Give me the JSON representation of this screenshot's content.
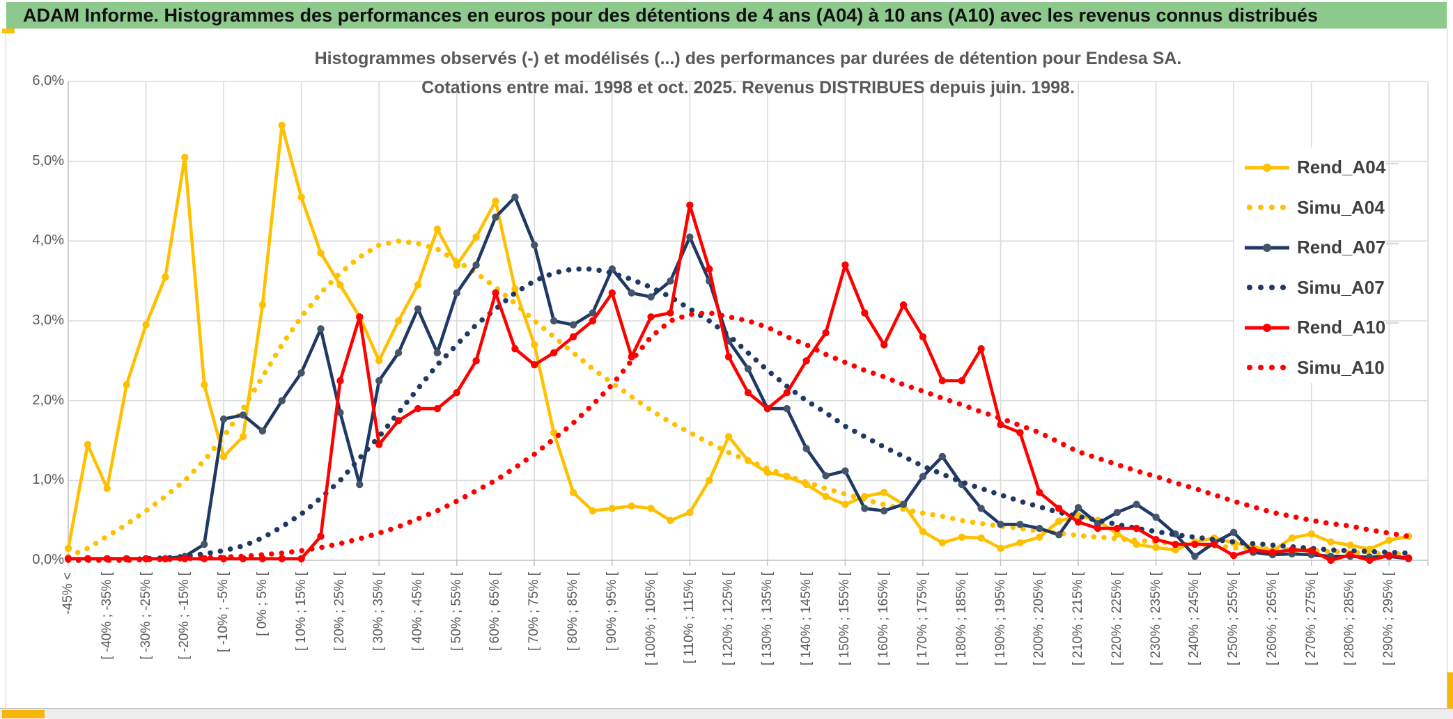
{
  "header": {
    "title": "ADAM Informe. Histogrammes des performances en euros pour des détentions de 4 ans (A04) à 10 ans (A10) avec les revenus connus distribués",
    "background_color": "#8DC88D",
    "accent_color": "#FFC000"
  },
  "chart": {
    "title_line1": "Histogrammes observés (-) et modélisés (...) des performances par durées de détention pour Endesa SA.",
    "title_line2": "Cotations entre mai. 1998 et oct. 2025. Revenus DISTRIBUES depuis juin. 1998.",
    "y_tick_labels": [
      "6,0%",
      "5,0%",
      "4,0%",
      "3,0%",
      "2,0%",
      "1,0%",
      "0,0%"
    ],
    "grid_color": "#DBDBDB",
    "axis_color": "#BFBFBF",
    "text_color": "#595959"
  },
  "chart_data": {
    "type": "line",
    "title": "Histogrammes observés (-) et modélisés (...) des performances par durées de détention pour Endesa SA. Cotations entre mai. 1998 et oct. 2025. Revenus DISTRIBUES depuis juin. 1998.",
    "ylabel": "",
    "xlabel": "",
    "ylim": [
      0,
      6
    ],
    "y_unit": "percent",
    "grid": true,
    "legend_position": "right",
    "bin_width_percent": 5,
    "x_tick_labels": [
      "-45% <",
      "[ -40% ; -35% [",
      "[ -30% ; -25% [",
      "[ -20% ; -15% [",
      "[ -10% ; -5% [",
      "[ 0% ; 5% [",
      "[ 10% ; 15% [",
      "[ 20% ; 25% [",
      "[ 30% ; 35% [",
      "[ 40% ; 45% [",
      "[ 50% ; 55% [",
      "[ 60% ; 65% [",
      "[ 70% ; 75% [",
      "[ 80% ; 85% [",
      "[ 90% ; 95% [",
      "[ 100% ; 105% [",
      "[ 110% ; 115% [",
      "[ 120% ; 125% [",
      "[ 130% ; 135% [",
      "[ 140% ; 145% [",
      "[ 150% ; 155% [",
      "[ 160% ; 165% [",
      "[ 170% ; 175% [",
      "[ 180% ; 185% [",
      "[ 190% ; 195% [",
      "[ 200% ; 205% [",
      "[ 210% ; 215% [",
      "[ 220% ; 225% [",
      "[ 230% ; 235% [",
      "[ 240% ; 245% [",
      "[ 250% ; 255% [",
      "[ 260% ; 265% [",
      "[ 270% ; 275% [",
      "[ 280% ; 285% [",
      "[ 290% ; 295% ["
    ],
    "labels_every_n_bins": 2,
    "series": [
      {
        "name": "Rend_A04",
        "style": "solid",
        "color": "#FFC000",
        "marker_color": "#FFC000",
        "values": [
          0.15,
          1.45,
          0.9,
          2.2,
          2.95,
          3.55,
          5.05,
          2.2,
          1.3,
          1.55,
          3.2,
          5.45,
          4.55,
          3.85,
          3.45,
          3.05,
          2.5,
          3.0,
          3.45,
          4.15,
          3.7,
          4.05,
          4.5,
          3.4,
          2.7,
          1.6,
          0.85,
          0.62,
          0.65,
          0.68,
          0.65,
          0.5,
          0.6,
          1.0,
          1.55,
          1.25,
          1.1,
          1.05,
          0.95,
          0.8,
          0.7,
          0.8,
          0.85,
          0.7,
          0.36,
          0.22,
          0.29,
          0.28,
          0.15,
          0.22,
          0.29,
          0.49,
          0.56,
          0.5,
          0.33,
          0.2,
          0.16,
          0.13,
          0.23,
          0.28,
          0.22,
          0.17,
          0.12,
          0.28,
          0.33,
          0.23,
          0.19,
          0.14,
          0.25,
          0.3
        ]
      },
      {
        "name": "Simu_A04",
        "style": "dotted",
        "color": "#FFC000",
        "values": [
          0.05,
          0.15,
          0.3,
          0.45,
          0.62,
          0.8,
          1.0,
          1.25,
          1.55,
          1.9,
          2.3,
          2.7,
          3.05,
          3.35,
          3.6,
          3.8,
          3.95,
          4.0,
          3.97,
          3.9,
          3.75,
          3.6,
          3.42,
          3.22,
          3.0,
          2.8,
          2.6,
          2.4,
          2.22,
          2.05,
          1.88,
          1.73,
          1.6,
          1.47,
          1.35,
          1.25,
          1.15,
          1.06,
          0.98,
          0.9,
          0.83,
          0.76,
          0.7,
          0.64,
          0.59,
          0.55,
          0.5,
          0.46,
          0.43,
          0.4,
          0.37,
          0.34,
          0.31,
          0.29,
          0.27,
          0.25,
          0.23,
          0.21,
          0.19,
          0.18,
          0.16,
          0.15,
          0.14,
          0.13,
          0.12,
          0.11,
          0.1,
          0.09,
          0.08,
          0.08
        ]
      },
      {
        "name": "Rend_A07",
        "style": "solid",
        "color": "#1F3864",
        "marker_color": "#44546A",
        "values": [
          0.02,
          0.02,
          0.02,
          0.02,
          0.02,
          0.02,
          0.05,
          0.2,
          1.77,
          1.82,
          1.62,
          2.0,
          2.35,
          2.9,
          1.85,
          0.95,
          2.25,
          2.6,
          3.15,
          2.6,
          3.35,
          3.7,
          4.3,
          4.55,
          3.95,
          3.0,
          2.95,
          3.1,
          3.65,
          3.35,
          3.3,
          3.5,
          4.05,
          3.5,
          2.75,
          2.4,
          1.9,
          1.9,
          1.4,
          1.06,
          1.12,
          0.65,
          0.62,
          0.7,
          1.05,
          1.3,
          0.95,
          0.65,
          0.45,
          0.45,
          0.4,
          0.32,
          0.66,
          0.46,
          0.6,
          0.7,
          0.54,
          0.33,
          0.05,
          0.22,
          0.35,
          0.1,
          0.07,
          0.08,
          0.07,
          0.05,
          0.05,
          0.04,
          0.05,
          0.02
        ]
      },
      {
        "name": "Simu_A07",
        "style": "dotted",
        "color": "#1F3864",
        "values": [
          0,
          0,
          0.01,
          0.01,
          0.02,
          0.03,
          0.05,
          0.08,
          0.12,
          0.18,
          0.28,
          0.42,
          0.58,
          0.78,
          1.0,
          1.28,
          1.55,
          1.85,
          2.15,
          2.45,
          2.7,
          2.95,
          3.15,
          3.35,
          3.5,
          3.6,
          3.65,
          3.65,
          3.6,
          3.52,
          3.42,
          3.3,
          3.15,
          3.0,
          2.82,
          2.6,
          2.38,
          2.18,
          2.0,
          1.85,
          1.68,
          1.55,
          1.42,
          1.3,
          1.18,
          1.08,
          0.98,
          0.9,
          0.82,
          0.74,
          0.67,
          0.6,
          0.55,
          0.5,
          0.45,
          0.4,
          0.36,
          0.32,
          0.29,
          0.26,
          0.23,
          0.21,
          0.19,
          0.17,
          0.15,
          0.13,
          0.12,
          0.11,
          0.1,
          0.09
        ]
      },
      {
        "name": "Rend_A10",
        "style": "solid",
        "color": "#FF0000",
        "marker_color": "#FF0000",
        "values": [
          0.02,
          0.02,
          0.02,
          0.02,
          0.02,
          0.02,
          0.02,
          0.02,
          0.02,
          0.02,
          0.02,
          0.02,
          0.02,
          0.3,
          2.25,
          3.05,
          1.45,
          1.75,
          1.9,
          1.9,
          2.1,
          2.5,
          3.35,
          2.65,
          2.45,
          2.6,
          2.8,
          3.0,
          3.35,
          2.55,
          3.05,
          3.1,
          4.45,
          3.65,
          2.55,
          2.1,
          1.9,
          2.1,
          2.5,
          2.85,
          3.7,
          3.1,
          2.7,
          3.2,
          2.8,
          2.25,
          2.25,
          2.65,
          1.7,
          1.6,
          0.85,
          0.65,
          0.48,
          0.4,
          0.4,
          0.4,
          0.26,
          0.2,
          0.2,
          0.2,
          0.06,
          0.13,
          0.1,
          0.13,
          0.12,
          0.0,
          0.07,
          0.0,
          0.06,
          0.03
        ]
      },
      {
        "name": "Simu_A10",
        "style": "dotted",
        "color": "#FF0000",
        "values": [
          0,
          0,
          0,
          0,
          0.01,
          0.01,
          0.02,
          0.03,
          0.04,
          0.05,
          0.07,
          0.09,
          0.12,
          0.16,
          0.21,
          0.27,
          0.34,
          0.42,
          0.52,
          0.62,
          0.74,
          0.87,
          1.0,
          1.16,
          1.33,
          1.52,
          1.72,
          1.95,
          2.2,
          2.5,
          2.8,
          3.0,
          3.08,
          3.1,
          3.05,
          3.0,
          2.92,
          2.8,
          2.7,
          2.58,
          2.48,
          2.38,
          2.3,
          2.2,
          2.12,
          2.03,
          1.95,
          1.86,
          1.78,
          1.69,
          1.6,
          1.48,
          1.36,
          1.28,
          1.2,
          1.12,
          1.05,
          0.97,
          0.9,
          0.82,
          0.74,
          0.67,
          0.6,
          0.55,
          0.5,
          0.46,
          0.43,
          0.38,
          0.34,
          0.3
        ]
      }
    ]
  }
}
